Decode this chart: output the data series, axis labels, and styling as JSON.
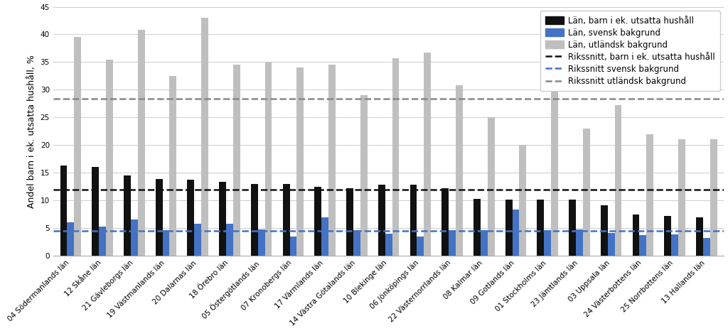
{
  "categories": [
    "04 Södermanlands län",
    "12 Skåne län",
    "21 Gävleborgs län",
    "19 Västmanlands län",
    "20 Dalarnas län",
    "18 Örebro län",
    "05 Östergötlands län",
    "07 Kronobergs län",
    "17 Värmlands län",
    "14 Västra Götalands län",
    "10 Blekinge län",
    "06 Jönköpings län",
    "22 Västernorrlands län",
    "08 Kalmar län",
    "09 Gotlands län",
    "01 Stockholms län",
    "23 Jämtlands län",
    "03 Uppsala län",
    "24 Västerbottens län",
    "25 Norrbottens län",
    "13 Hallands län"
  ],
  "black_values": [
    16.3,
    16.0,
    14.5,
    13.8,
    13.7,
    13.3,
    13.0,
    13.0,
    12.5,
    12.2,
    12.9,
    12.8,
    12.2,
    10.3,
    10.2,
    10.1,
    10.2,
    9.1,
    7.5,
    7.2,
    6.9
  ],
  "blue_values": [
    6.0,
    5.3,
    6.5,
    4.6,
    5.8,
    5.8,
    4.8,
    3.5,
    6.9,
    4.6,
    4.0,
    3.5,
    4.6,
    4.6,
    8.4,
    4.6,
    4.8,
    4.1,
    3.7,
    3.8,
    3.2
  ],
  "gray_values": [
    39.5,
    35.4,
    40.8,
    32.5,
    43.0,
    34.5,
    35.0,
    34.0,
    34.5,
    29.0,
    35.7,
    36.7,
    30.8,
    25.1,
    20.0,
    34.0,
    23.0,
    27.2,
    22.0,
    21.0,
    21.0
  ],
  "rikssnitt_black": 11.9,
  "rikssnitt_blue": 4.5,
  "rikssnitt_gray": 28.4,
  "ylim": [
    0,
    45
  ],
  "yticks": [
    0,
    5,
    10,
    15,
    20,
    25,
    30,
    35,
    40,
    45
  ],
  "ylabel": "Andel barn i ek. utsatta hushåll, %",
  "bar_width": 0.22,
  "black_color": "#111111",
  "blue_color": "#4472c4",
  "gray_color": "#bfbfbf",
  "line_black_color": "#111111",
  "line_blue_color": "#4472c4",
  "line_gray_color": "#888888",
  "legend_labels": [
    "Län, barn i ek. utsatta hushåll",
    "Län, svensk bakgrund",
    "Län, utländsk bakgrund",
    "Rikssnitt, barn i ek. utsatta hushåll",
    "Rikssnitt svensk bakgrund",
    "Rikssnitt utländsk bakgrund"
  ],
  "grid_color": "#cccccc",
  "tick_fontsize": 7.5,
  "ylabel_fontsize": 9,
  "legend_fontsize": 8.5
}
